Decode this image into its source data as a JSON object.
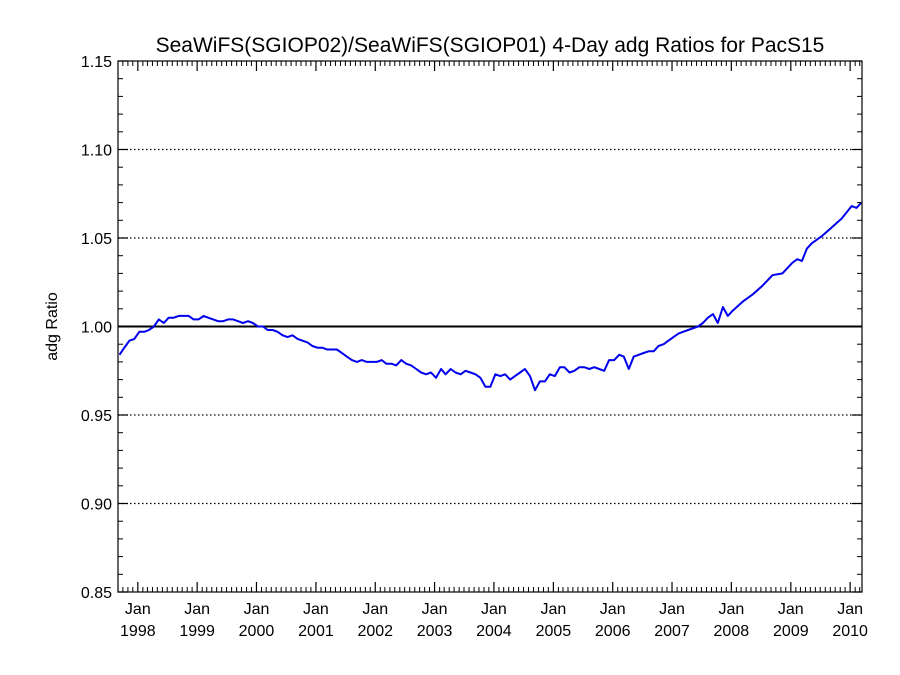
{
  "chart_data": {
    "type": "line",
    "title": "SeaWiFS(SGIOP02)/SeaWiFS(SGIOP01) 4-Day adg Ratios for PacS15",
    "xlabel": "",
    "ylabel": "adg Ratio",
    "xlim": [
      "1997-09-01",
      "2010-03-15"
    ],
    "ylim": [
      0.85,
      1.15
    ],
    "yticks": [
      "0.85",
      "0.90",
      "0.95",
      "1.00",
      "1.05",
      "1.10",
      "1.15"
    ],
    "ygrid": [
      0.9,
      0.95,
      1.05,
      1.1
    ],
    "ygrid_style": "dotted",
    "reference_line": 1.0,
    "xticks": [
      {
        "date": "1998-01-01",
        "month": "Jan",
        "year": "1998"
      },
      {
        "date": "1999-01-01",
        "month": "Jan",
        "year": "1999"
      },
      {
        "date": "2000-01-01",
        "month": "Jan",
        "year": "2000"
      },
      {
        "date": "2001-01-01",
        "month": "Jan",
        "year": "2001"
      },
      {
        "date": "2002-01-01",
        "month": "Jan",
        "year": "2002"
      },
      {
        "date": "2003-01-01",
        "month": "Jan",
        "year": "2003"
      },
      {
        "date": "2004-01-01",
        "month": "Jan",
        "year": "2004"
      },
      {
        "date": "2005-01-01",
        "month": "Jan",
        "year": "2005"
      },
      {
        "date": "2006-01-01",
        "month": "Jan",
        "year": "2006"
      },
      {
        "date": "2007-01-01",
        "month": "Jan",
        "year": "2007"
      },
      {
        "date": "2008-01-01",
        "month": "Jan",
        "year": "2008"
      },
      {
        "date": "2009-01-01",
        "month": "Jan",
        "year": "2009"
      },
      {
        "date": "2010-01-01",
        "month": "Jan",
        "year": "2010"
      }
    ],
    "series": [
      {
        "color": "#0000ee",
        "x": [
          "1997-09-10",
          "1997-10-10",
          "1997-11-10",
          "1997-12-10",
          "1998-01-10",
          "1998-02-10",
          "1998-03-10",
          "1998-04-10",
          "1998-05-10",
          "1998-06-10",
          "1998-07-10",
          "1998-08-10",
          "1998-09-10",
          "1998-10-10",
          "1998-11-10",
          "1998-12-10",
          "1999-01-10",
          "1999-02-10",
          "1999-03-10",
          "1999-04-10",
          "1999-05-10",
          "1999-06-10",
          "1999-07-10",
          "1999-08-10",
          "1999-09-10",
          "1999-10-10",
          "1999-11-10",
          "1999-12-10",
          "2000-01-10",
          "2000-02-10",
          "2000-03-10",
          "2000-04-10",
          "2000-05-10",
          "2000-06-10",
          "2000-07-10",
          "2000-08-10",
          "2000-09-10",
          "2000-10-10",
          "2000-11-10",
          "2000-12-10",
          "2001-01-10",
          "2001-02-10",
          "2001-03-10",
          "2001-04-10",
          "2001-05-10",
          "2001-06-10",
          "2001-07-10",
          "2001-08-10",
          "2001-09-10",
          "2001-10-10",
          "2001-11-10",
          "2001-12-10",
          "2002-01-10",
          "2002-02-10",
          "2002-03-10",
          "2002-04-10",
          "2002-05-10",
          "2002-06-10",
          "2002-07-10",
          "2002-08-10",
          "2002-09-10",
          "2002-10-10",
          "2002-11-10",
          "2002-12-10",
          "2003-01-10",
          "2003-02-10",
          "2003-03-10",
          "2003-04-10",
          "2003-05-10",
          "2003-06-10",
          "2003-07-10",
          "2003-08-10",
          "2003-09-10",
          "2003-10-10",
          "2003-11-10",
          "2003-12-10",
          "2004-01-10",
          "2004-02-10",
          "2004-03-10",
          "2004-04-10",
          "2004-05-10",
          "2004-06-10",
          "2004-07-10",
          "2004-08-10",
          "2004-09-10",
          "2004-10-10",
          "2004-11-10",
          "2004-12-10",
          "2005-01-10",
          "2005-02-10",
          "2005-03-10",
          "2005-04-10",
          "2005-05-10",
          "2005-06-10",
          "2005-07-10",
          "2005-08-10",
          "2005-09-10",
          "2005-10-10",
          "2005-11-10",
          "2005-12-10",
          "2006-01-10",
          "2006-02-10",
          "2006-03-10",
          "2006-04-10",
          "2006-05-10",
          "2006-06-10",
          "2006-07-10",
          "2006-08-10",
          "2006-09-10",
          "2006-10-10",
          "2006-11-10",
          "2006-12-10",
          "2007-01-10",
          "2007-02-10",
          "2007-03-10",
          "2007-04-10",
          "2007-05-10",
          "2007-06-10",
          "2007-07-10",
          "2007-08-10",
          "2007-09-10",
          "2007-10-10",
          "2007-11-10",
          "2007-12-10",
          "2008-01-10",
          "2008-03-10",
          "2008-05-10",
          "2008-07-10",
          "2008-09-10",
          "2008-11-10",
          "2009-01-10",
          "2009-02-10",
          "2009-03-10",
          "2009-04-10",
          "2009-05-10",
          "2009-07-10",
          "2009-09-10",
          "2009-11-10",
          "2010-01-10",
          "2010-02-10",
          "2010-03-10"
        ],
        "y": [
          0.984,
          0.988,
          0.992,
          0.993,
          0.997,
          0.997,
          0.998,
          1.0,
          1.004,
          1.002,
          1.005,
          1.005,
          1.006,
          1.006,
          1.006,
          1.004,
          1.004,
          1.006,
          1.005,
          1.004,
          1.003,
          1.003,
          1.004,
          1.004,
          1.003,
          1.002,
          1.003,
          1.002,
          1.0,
          1.0,
          0.998,
          0.998,
          0.997,
          0.995,
          0.994,
          0.995,
          0.993,
          0.992,
          0.991,
          0.989,
          0.988,
          0.988,
          0.987,
          0.987,
          0.987,
          0.985,
          0.983,
          0.981,
          0.98,
          0.981,
          0.98,
          0.98,
          0.98,
          0.981,
          0.979,
          0.979,
          0.978,
          0.981,
          0.979,
          0.978,
          0.976,
          0.974,
          0.973,
          0.974,
          0.971,
          0.976,
          0.973,
          0.976,
          0.974,
          0.973,
          0.975,
          0.974,
          0.973,
          0.971,
          0.966,
          0.966,
          0.973,
          0.972,
          0.973,
          0.97,
          0.972,
          0.974,
          0.976,
          0.972,
          0.964,
          0.969,
          0.969,
          0.973,
          0.972,
          0.977,
          0.977,
          0.974,
          0.975,
          0.977,
          0.977,
          0.976,
          0.977,
          0.976,
          0.975,
          0.981,
          0.981,
          0.984,
          0.983,
          0.976,
          0.983,
          0.984,
          0.985,
          0.986,
          0.986,
          0.989,
          0.99,
          0.992,
          0.994,
          0.996,
          0.997,
          0.998,
          0.999,
          1.0,
          1.002,
          1.005,
          1.007,
          1.002,
          1.011,
          1.006,
          1.009,
          1.014,
          1.018,
          1.023,
          1.029,
          1.03,
          1.036,
          1.038,
          1.037,
          1.044,
          1.047,
          1.051,
          1.056,
          1.061,
          1.068,
          1.067,
          1.07
        ]
      }
    ]
  }
}
